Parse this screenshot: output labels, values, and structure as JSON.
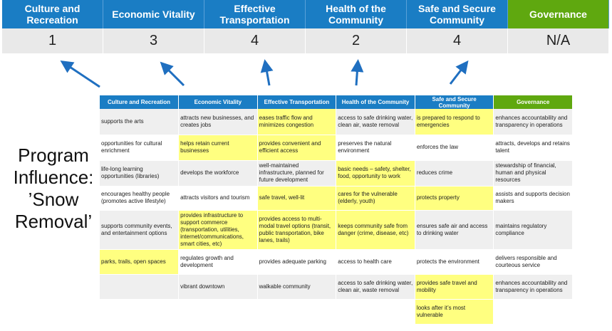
{
  "summary": {
    "headers": [
      "Culture and Recreation",
      "Economic Vitality",
      "Effective Transportation",
      "Health of the Community",
      "Safe and Secure Community",
      "Governance"
    ],
    "scores": [
      "1",
      "3",
      "4",
      "2",
      "4",
      "N/A"
    ]
  },
  "program_label": "Program Influence: ’Snow Removal’",
  "colors": {
    "header_blue": "#1a7dc4",
    "governance_green": "#5fa80f",
    "highlight": "#ffff80",
    "arrow": "#1f6fc0"
  },
  "table": {
    "headers": [
      "Culture and Recreation",
      "Economic Vitality",
      "Effective Transportation",
      "Health of the Community",
      "Safe and Secure Community",
      "Governance"
    ],
    "rows": [
      {
        "cells": [
          "supports the arts",
          "attracts new businesses, and creates jobs",
          "eases traffic flow and minimizes congestion",
          "access to safe drinking water, clean air, waste removal",
          "is prepared to respond to emergencies",
          "enhances accountability and transparency in operations"
        ],
        "highlighted": [
          false,
          false,
          true,
          false,
          true,
          false
        ]
      },
      {
        "cells": [
          "opportunities for cultural enrichment",
          "helps retain current businesses",
          "provides convenient and efficient access",
          "preserves the natural environment",
          "enforces the law",
          "attracts, develops and retains talent"
        ],
        "highlighted": [
          false,
          true,
          true,
          false,
          false,
          false
        ]
      },
      {
        "cells": [
          "life-long learning opportunities (libraries)",
          "develops the workforce",
          "well-maintained infrastructure, planned for future development",
          "basic needs – safety, shelter, food, opportunity to work",
          "reduces crime",
          "stewardship of financial, human and physical resources"
        ],
        "highlighted": [
          false,
          false,
          false,
          true,
          false,
          false
        ]
      },
      {
        "cells": [
          "encourages healthy people (promotes active lifestyle)",
          "attracts visitors and tourism",
          "safe travel, well-lit",
          "cares for the vulnerable (elderly, youth)",
          "protects property",
          "assists and supports decision makers"
        ],
        "highlighted": [
          false,
          false,
          true,
          true,
          true,
          false
        ]
      },
      {
        "cells": [
          "supports community events, and entertainment options",
          "provides infrastructure to support commerce (transportation, utilities, internet/communications, smart cities, etc)",
          "provides access to multi-modal travel options (transit, public transportation, bike lanes, trails)",
          "keeps community safe from danger (crime, disease, etc)",
          "ensures safe air and access to drinking water",
          "maintains regulatory compliance"
        ],
        "highlighted": [
          false,
          true,
          true,
          true,
          false,
          false
        ]
      },
      {
        "cells": [
          "parks, trails, open spaces",
          "regulates growth and development",
          "provides adequate parking",
          "access to health care",
          "protects the environment",
          "delivers responsible and courteous service"
        ],
        "highlighted": [
          true,
          false,
          false,
          false,
          false,
          false
        ]
      },
      {
        "cells": [
          "",
          "vibrant downtown",
          "walkable community",
          "access to safe drinking water, clean air, waste removal",
          "provides safe travel and mobility",
          "enhances accountability and transparency in operations"
        ],
        "highlighted": [
          false,
          false,
          false,
          false,
          true,
          false
        ]
      },
      {
        "cells": [
          "",
          "",
          "",
          "",
          "looks after it’s most vulnerable",
          ""
        ],
        "highlighted": [
          false,
          false,
          false,
          false,
          true,
          false
        ]
      }
    ]
  }
}
